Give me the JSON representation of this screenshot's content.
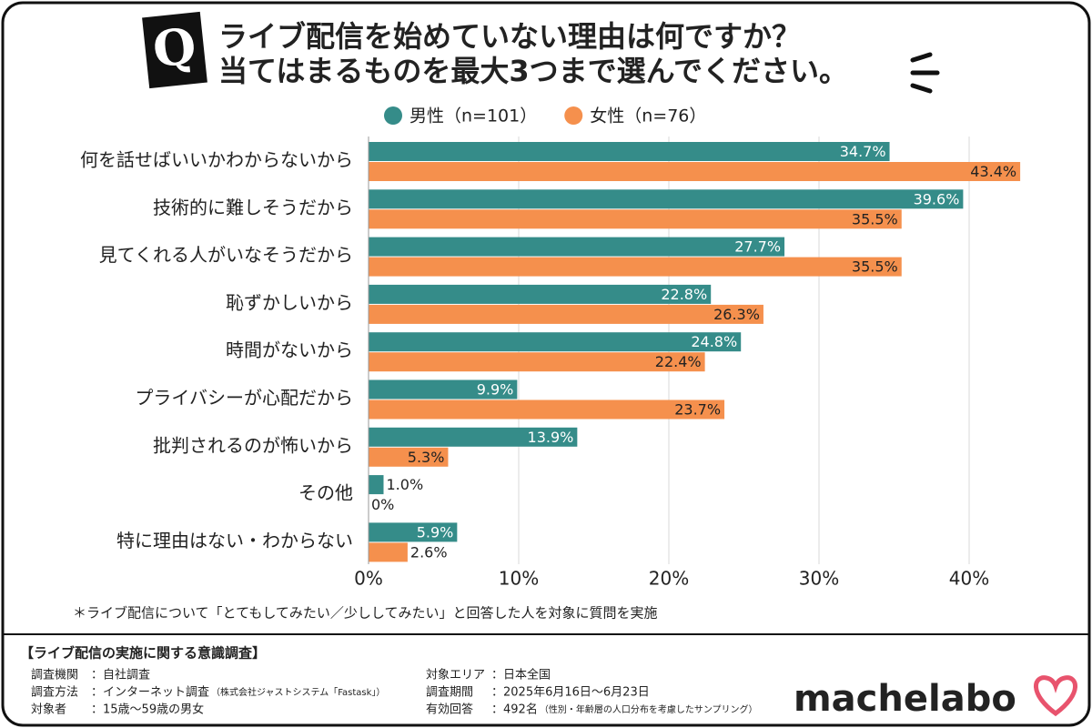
{
  "chart_data": {
    "type": "bar",
    "orientation": "horizontal",
    "badge": "Q",
    "title": "ライブ配信を始めていない理由は何ですか？",
    "subtitle": "当てはまるものを最大3つまで選んでください。",
    "categories": [
      "何を話せばいいかわからないから",
      "技術的に難しそうだから",
      "見てくれる人がいなそうだから",
      "恥ずかしいから",
      "時間がないから",
      "プライバシーが心配だから",
      "批判されるのが怖いから",
      "その他",
      "特に理由はない・わからない"
    ],
    "series": [
      {
        "name": "男性（n=101）",
        "color": "#358c89",
        "values": [
          34.7,
          39.6,
          27.7,
          22.8,
          24.8,
          9.9,
          13.9,
          1.0,
          5.9
        ],
        "value_labels": [
          "34.7%",
          "39.6%",
          "27.7%",
          "22.8%",
          "24.8%",
          "9.9%",
          "13.9%",
          "1.0%",
          "5.9%"
        ]
      },
      {
        "name": "女性（n=76）",
        "color": "#f5904d",
        "values": [
          43.4,
          35.5,
          35.5,
          26.3,
          22.4,
          23.7,
          5.3,
          0,
          2.6
        ],
        "value_labels": [
          "43.4%",
          "35.5%",
          "35.5%",
          "26.3%",
          "22.4%",
          "23.7%",
          "5.3%",
          "0%",
          "2.6%"
        ]
      }
    ],
    "xlim": [
      0,
      44
    ],
    "xticks": [
      {
        "value": 0,
        "label": "0%"
      },
      {
        "value": 10,
        "label": "10%"
      },
      {
        "value": 20,
        "label": "20%"
      },
      {
        "value": 30,
        "label": "30%"
      },
      {
        "value": 40,
        "label": "40%"
      }
    ],
    "grid": true,
    "legend": "top",
    "footnote": "＊ライブ配信について「とてもしてみたい／少ししてみたい」と回答した人を対象に質問を実施"
  },
  "survey": {
    "title": "【ライブ配信の実施に関する意識調査】",
    "items": [
      {
        "label": "調査機関",
        "value": "：自社調査"
      },
      {
        "label": "調査方法",
        "value": "：インターネット調査",
        "note": "（株式会社ジャストシステム「Fastask」）"
      },
      {
        "label": "対象者",
        "value": "：15歳〜59歳の男女"
      },
      {
        "label": "対象エリア",
        "value": "：日本全国"
      },
      {
        "label": "調査期間",
        "value": "：2025年6月16日〜6月23日"
      },
      {
        "label": "有効回答",
        "value": "：492名",
        "note": "（性別・年齢層の人口分布を考慮したサンプリング）"
      }
    ],
    "logo": "machelabo"
  }
}
